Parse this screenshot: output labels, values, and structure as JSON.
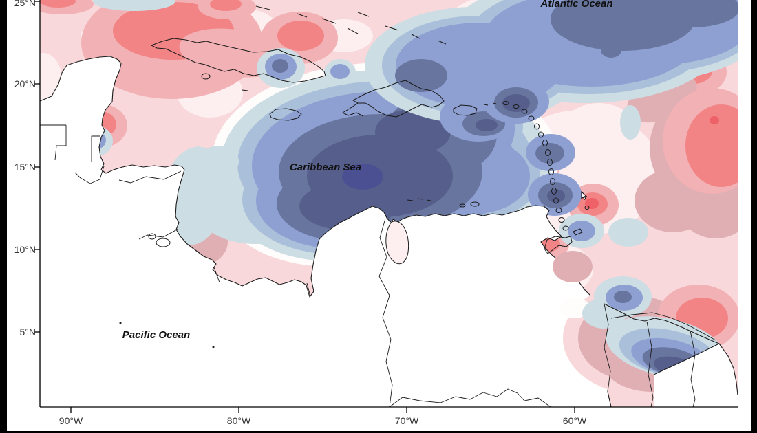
{
  "region_labels": {
    "atlantic_ocean": "Atlantic Ocean",
    "caribbean_sea": "Caribbean Sea",
    "pacific_ocean": "Pacific Ocean"
  },
  "y_axis": {
    "ticks": [
      {
        "label": "25°N"
      },
      {
        "label": "20°N"
      },
      {
        "label": "15°N"
      },
      {
        "label": "10°N"
      },
      {
        "label": "5°N"
      }
    ]
  },
  "x_axis": {
    "ticks": [
      {
        "label": "90°W"
      },
      {
        "label": "80°W"
      },
      {
        "label": "70°W"
      },
      {
        "label": "60°W"
      }
    ]
  },
  "palette": {
    "p0": "#fdeff0",
    "p1": "#f8d8da",
    "p2": "#f2b1b4",
    "p2m": "#e0afb4",
    "p3": "#f28486",
    "p4": "#ee6167",
    "w": "#fffcfc",
    "b0": "#ccdde4",
    "b05": "#aabfda",
    "b1": "#8e9fd2",
    "b2": "#68759f",
    "b3": "#565f8b",
    "b3p": "#4b5092",
    "land": "#ffffff",
    "coast": "#1a1a1a",
    "frame": "#000000",
    "text": "#333333"
  }
}
